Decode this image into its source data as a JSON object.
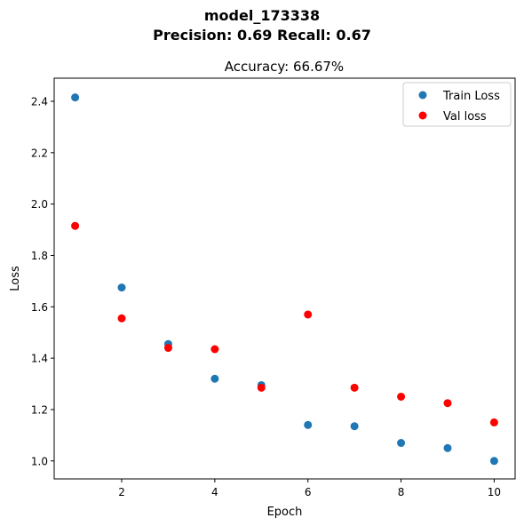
{
  "figure": {
    "suptitle_line1": "model_173338",
    "suptitle_line2": "Precision: 0.69 Recall: 0.67"
  },
  "chart_data": {
    "type": "scatter",
    "title": "Accuracy: 66.67%",
    "xlabel": "Epoch",
    "ylabel": "Loss",
    "xlim": [
      0.55,
      10.45
    ],
    "ylim": [
      0.93,
      2.49
    ],
    "xticks": [
      2,
      4,
      6,
      8,
      10
    ],
    "yticks": [
      1.0,
      1.2,
      1.4,
      1.6,
      1.8,
      2.0,
      2.2,
      2.4
    ],
    "ytick_labels": [
      "1.0",
      "1.2",
      "1.4",
      "1.6",
      "1.8",
      "2.0",
      "2.2",
      "2.4"
    ],
    "grid": false,
    "legend_position": "top-right",
    "series": [
      {
        "name": "Train Loss",
        "color": "#1f77b4",
        "x": [
          1,
          2,
          3,
          4,
          5,
          6,
          7,
          8,
          9,
          10
        ],
        "y": [
          2.415,
          1.675,
          1.455,
          1.32,
          1.295,
          1.14,
          1.135,
          1.07,
          1.05,
          1.0
        ]
      },
      {
        "name": "Val loss",
        "color": "#ff0000",
        "x": [
          1,
          2,
          3,
          4,
          5,
          6,
          7,
          8,
          9,
          10
        ],
        "y": [
          1.915,
          1.555,
          1.44,
          1.435,
          1.285,
          1.57,
          1.285,
          1.25,
          1.225,
          1.15
        ]
      }
    ]
  }
}
